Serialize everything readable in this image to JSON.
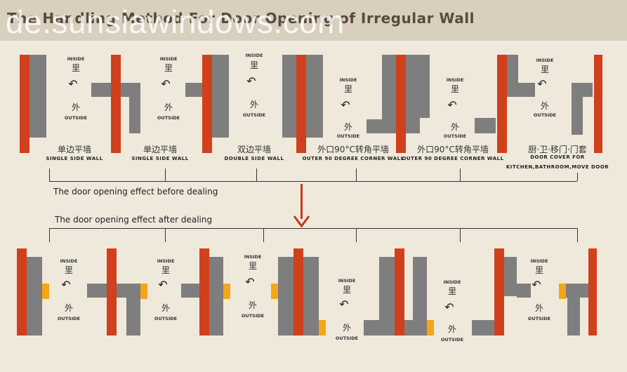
{
  "header": {
    "title": "The Handling Method For Door Opening of Irregular Wall",
    "watermark": "de.sunsiawindows.com"
  },
  "labels": {
    "inside_en": "INSIDE",
    "inside_cn": "里",
    "outside_en": "OUTSIDE",
    "outside_cn": "外"
  },
  "types": [
    {
      "cn": "单边平墙",
      "en": "SINGLE SIDE WALL"
    },
    {
      "cn": "单边平墙",
      "en": "SINGLE SIDE WALL"
    },
    {
      "cn": "双边平墙",
      "en": "DOUBLE SIDE WALL"
    },
    {
      "cn": "外口90°C转角平墙",
      "en": "OUTER 90 DEGREE CORNER WALL"
    },
    {
      "cn": "外口90°C转角平墙",
      "en": "OUTER 90 DEGREE CORNER WALL"
    },
    {
      "cn": "厨·卫·移门·门套",
      "en": "DOOR COVER FOR",
      "en2": "KITCHEN,BATHROOM,MOVE DOOR"
    }
  ],
  "captions": {
    "before": "The door opening effect before dealing",
    "after": "The door opening effect after dealing"
  },
  "colors": {
    "frame": "#d1401c",
    "wall": "#7e7e7e",
    "filler": "#f5a515"
  }
}
